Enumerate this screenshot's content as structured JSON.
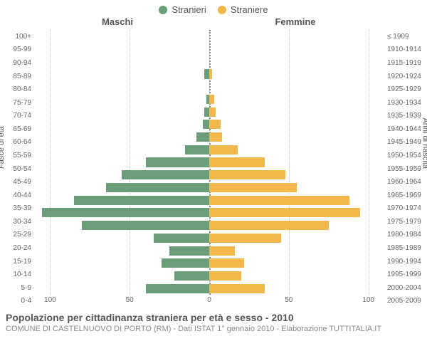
{
  "legend": {
    "male": {
      "label": "Stranieri",
      "color": "#6b9e78"
    },
    "female": {
      "label": "Straniere",
      "color": "#f2b84b"
    }
  },
  "columns": {
    "left": "Maschi",
    "right": "Femmine"
  },
  "y_left_label": "Fasce di età",
  "y_right_label": "Anni di nascita",
  "x_axis": {
    "max": 110,
    "ticks": [
      100,
      50,
      0,
      50,
      100
    ]
  },
  "colors": {
    "background": "#ffffff",
    "grid": "#bbbbbb",
    "center": "#888888",
    "text": "#555555",
    "text_muted": "#888888"
  },
  "categories": [
    {
      "age": "100+",
      "birth": "≤ 1909",
      "male": 0,
      "female": 0
    },
    {
      "age": "95-99",
      "birth": "1910-1914",
      "male": 0,
      "female": 0
    },
    {
      "age": "90-94",
      "birth": "1915-1919",
      "male": 0,
      "female": 0
    },
    {
      "age": "85-89",
      "birth": "1920-1924",
      "male": 3,
      "female": 2
    },
    {
      "age": "80-84",
      "birth": "1925-1929",
      "male": 0,
      "female": 0
    },
    {
      "age": "75-79",
      "birth": "1930-1934",
      "male": 2,
      "female": 3
    },
    {
      "age": "70-74",
      "birth": "1935-1939",
      "male": 3,
      "female": 4
    },
    {
      "age": "65-69",
      "birth": "1940-1944",
      "male": 4,
      "female": 7
    },
    {
      "age": "60-64",
      "birth": "1945-1949",
      "male": 8,
      "female": 8
    },
    {
      "age": "55-59",
      "birth": "1950-1954",
      "male": 15,
      "female": 18
    },
    {
      "age": "50-54",
      "birth": "1955-1959",
      "male": 40,
      "female": 35
    },
    {
      "age": "45-49",
      "birth": "1960-1964",
      "male": 55,
      "female": 48
    },
    {
      "age": "40-44",
      "birth": "1965-1969",
      "male": 65,
      "female": 55
    },
    {
      "age": "35-39",
      "birth": "1970-1974",
      "male": 85,
      "female": 88
    },
    {
      "age": "30-34",
      "birth": "1975-1979",
      "male": 105,
      "female": 95
    },
    {
      "age": "25-29",
      "birth": "1980-1984",
      "male": 80,
      "female": 75
    },
    {
      "age": "20-24",
      "birth": "1985-1989",
      "male": 35,
      "female": 45
    },
    {
      "age": "15-19",
      "birth": "1990-1994",
      "male": 25,
      "female": 16
    },
    {
      "age": "10-14",
      "birth": "1995-1999",
      "male": 30,
      "female": 22
    },
    {
      "age": "5-9",
      "birth": "2000-2004",
      "male": 22,
      "female": 20
    },
    {
      "age": "0-4",
      "birth": "2005-2009",
      "male": 40,
      "female": 35
    }
  ],
  "footer": {
    "title": "Popolazione per cittadinanza straniera per età e sesso - 2010",
    "subtitle": "COMUNE DI CASTELNUOVO DI PORTO (RM) - Dati ISTAT 1° gennaio 2010 - Elaborazione TUTTITALIA.IT"
  }
}
